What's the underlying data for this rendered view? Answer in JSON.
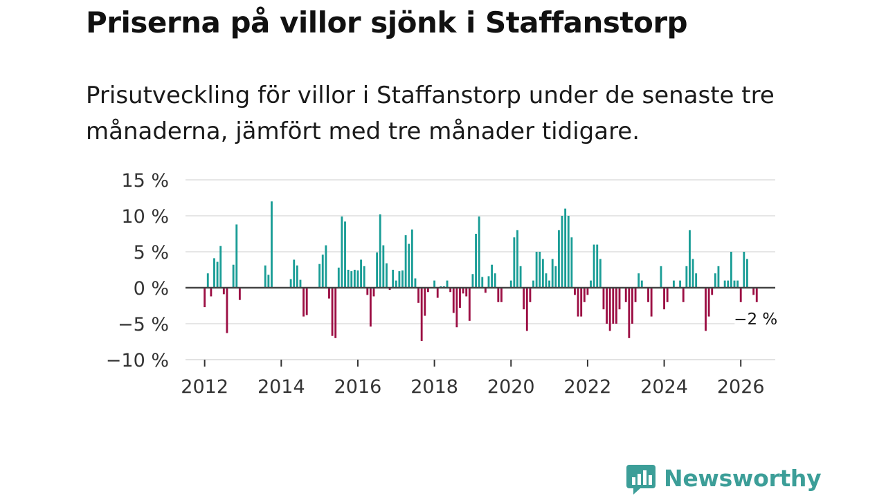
{
  "title": "Priserna på villor sjönk i Staffanstorp",
  "subtitle": "Prisutveckling för villor i Staffanstorp under de senaste tre månaderna, jämfört med tre månader tidigare.",
  "brand": {
    "name": "Newsworthy",
    "color": "#3c9e98"
  },
  "colors": {
    "positive": "#1a9d96",
    "negative": "#9c0f44",
    "zero_line": "#444444",
    "grid": "#dddddd"
  },
  "chart_data": {
    "type": "bar",
    "title": "Priserna på villor sjönk i Staffanstorp",
    "xlabel": "",
    "ylabel": "",
    "ylim": [
      -10,
      15
    ],
    "xlim": [
      2011.5,
      2026.9
    ],
    "yticks": [
      {
        "value": 15,
        "label": "15 %"
      },
      {
        "value": 10,
        "label": "10 %"
      },
      {
        "value": 5,
        "label": "5 %"
      },
      {
        "value": 0,
        "label": "0 %"
      },
      {
        "value": -5,
        "label": "−5 %"
      },
      {
        "value": -10,
        "label": "−10 %"
      }
    ],
    "xticks": [
      {
        "value": 2012,
        "label": "2012"
      },
      {
        "value": 2014,
        "label": "2014"
      },
      {
        "value": 2016,
        "label": "2016"
      },
      {
        "value": 2018,
        "label": "2018"
      },
      {
        "value": 2020,
        "label": "2020"
      },
      {
        "value": 2022,
        "label": "2022"
      },
      {
        "value": 2024,
        "label": "2024"
      },
      {
        "value": 2026,
        "label": "2026"
      }
    ],
    "last_label": "−2 %",
    "start": {
      "year": 2012,
      "month": 1
    },
    "values": [
      -2.7,
      2.0,
      -1.2,
      4.1,
      3.6,
      5.8,
      -0.9,
      -6.3,
      0,
      3.2,
      8.8,
      -1.7,
      null,
      null,
      null,
      null,
      null,
      null,
      null,
      3.1,
      1.8,
      12.0,
      null,
      null,
      null,
      null,
      null,
      1.2,
      3.9,
      3.1,
      1.1,
      -4.0,
      -3.8,
      null,
      null,
      null,
      3.3,
      4.6,
      5.9,
      -1.5,
      -6.7,
      -7.0,
      2.8,
      9.9,
      9.2,
      2.5,
      2.3,
      2.5,
      2.4,
      3.9,
      3.0,
      -1.0,
      -5.4,
      -1.2,
      4.9,
      10.2,
      5.9,
      3.4,
      -0.3,
      2.5,
      1.0,
      2.3,
      2.4,
      7.3,
      6.1,
      8.1,
      1.3,
      -2.1,
      -7.4,
      -3.9,
      -0.6,
      null,
      1.0,
      -1.4,
      0.2,
      0.2,
      1.0,
      -0.6,
      -3.5,
      -5.5,
      -2.8,
      -0.8,
      -1.2,
      -4.6,
      1.9,
      7.5,
      9.9,
      1.5,
      -0.7,
      1.6,
      3.2,
      2.0,
      -2.0,
      -2.0,
      null,
      null,
      1.0,
      7.0,
      8.0,
      3.0,
      -3.0,
      -6.0,
      -2.0,
      1.0,
      5.0,
      5.0,
      4.0,
      2.0,
      1.0,
      4.0,
      3.0,
      8.0,
      10.0,
      11.0,
      10.0,
      7.0,
      -1.0,
      -4.0,
      -4.0,
      -2.0,
      -1.0,
      1.0,
      6.0,
      6.0,
      4.0,
      -3.0,
      -5.0,
      -6.0,
      -5.0,
      -5.0,
      -3.0,
      null,
      -2.0,
      -7.0,
      -5.0,
      -2.0,
      2.0,
      1.0,
      null,
      -2.0,
      -4.0,
      null,
      null,
      3.0,
      -3.0,
      -2.0,
      null,
      1.0,
      null,
      1.0,
      -2.0,
      3.0,
      8.0,
      4.0,
      2.0,
      null,
      null,
      -6.0,
      -4.0,
      -1.0,
      2.0,
      3.0,
      null,
      1.0,
      1.0,
      5.0,
      1.0,
      1.0,
      -2.0,
      5.0,
      4.0,
      null,
      -1.0,
      -2.0
    ]
  }
}
